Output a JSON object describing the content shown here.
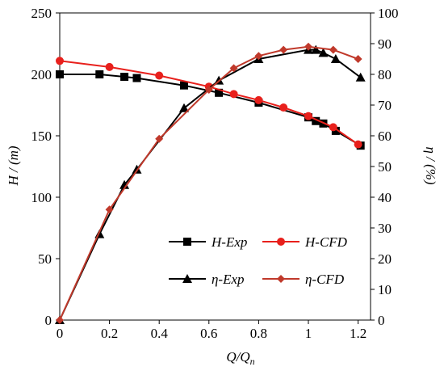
{
  "chart_data": {
    "type": "line",
    "xlabel": "Q/Q",
    "xlabel_sub": "n",
    "ylabel_left": "H / (m)",
    "ylabel_right": "η / (%)",
    "x_ticks": [
      "0",
      "0.2",
      "0.4",
      "0.6",
      "0.8",
      "1",
      "1.2"
    ],
    "y_left_ticks": [
      "0",
      "50",
      "100",
      "150",
      "200",
      "250"
    ],
    "y_right_ticks": [
      "0",
      "10",
      "20",
      "30",
      "40",
      "50",
      "60",
      "70",
      "80",
      "90",
      "100"
    ],
    "xlim": [
      0,
      1.25
    ],
    "ylim_left": [
      0,
      250
    ],
    "ylim_right": [
      0,
      100
    ],
    "grid": false,
    "legend_position": "bottom-right",
    "series": [
      {
        "name": "H-Exp",
        "axis": "left",
        "color": "#000000",
        "marker": "square",
        "x": [
          0,
          0.16,
          0.26,
          0.31,
          0.5,
          0.64,
          0.8,
          1.0,
          1.03,
          1.06,
          1.11,
          1.21
        ],
        "y": [
          200,
          200,
          198,
          197,
          191,
          185,
          177,
          165,
          162,
          160,
          154,
          142
        ]
      },
      {
        "name": "H-CFD",
        "axis": "left",
        "color": "#e8201c",
        "marker": "circle",
        "x": [
          0,
          0.2,
          0.4,
          0.6,
          0.7,
          0.8,
          0.9,
          1.0,
          1.1,
          1.2
        ],
        "y": [
          211,
          206,
          199,
          190,
          184,
          179,
          173,
          166,
          157,
          143
        ]
      },
      {
        "name": "η-Exp",
        "axis": "right",
        "color": "#000000",
        "marker": "triangle",
        "x": [
          0,
          0.16,
          0.26,
          0.31,
          0.5,
          0.64,
          0.8,
          1.0,
          1.03,
          1.06,
          1.11,
          1.21
        ],
        "y": [
          0,
          28,
          44,
          49,
          69,
          78,
          85,
          88,
          88,
          87,
          85,
          79
        ]
      },
      {
        "name": "η-CFD",
        "axis": "right",
        "color": "#c0392b",
        "marker": "diamond",
        "x": [
          0,
          0.2,
          0.4,
          0.6,
          0.7,
          0.8,
          0.9,
          1.0,
          1.1,
          1.2
        ],
        "y": [
          0,
          36,
          59,
          75,
          82,
          86,
          88,
          89,
          88,
          85
        ]
      }
    ]
  }
}
